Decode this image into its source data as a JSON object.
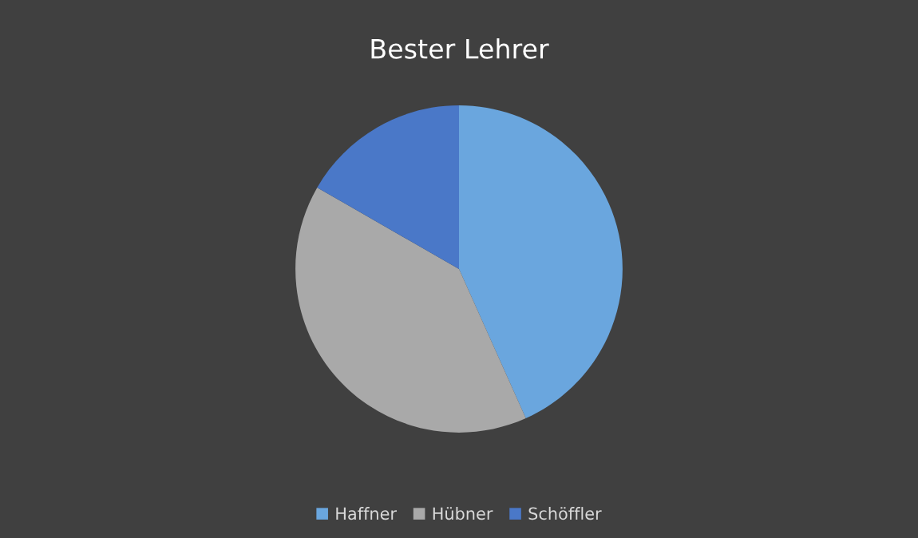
{
  "chart_data": {
    "type": "pie",
    "title": "Bester Lehrer",
    "categories": [
      "Haffner",
      "Hübner",
      "Schöffler"
    ],
    "values": [
      43.3,
      40,
      16.7
    ],
    "colors": [
      "#6aa6de",
      "#a9a9a9",
      "#4a78c8"
    ],
    "legend": "bottom"
  }
}
